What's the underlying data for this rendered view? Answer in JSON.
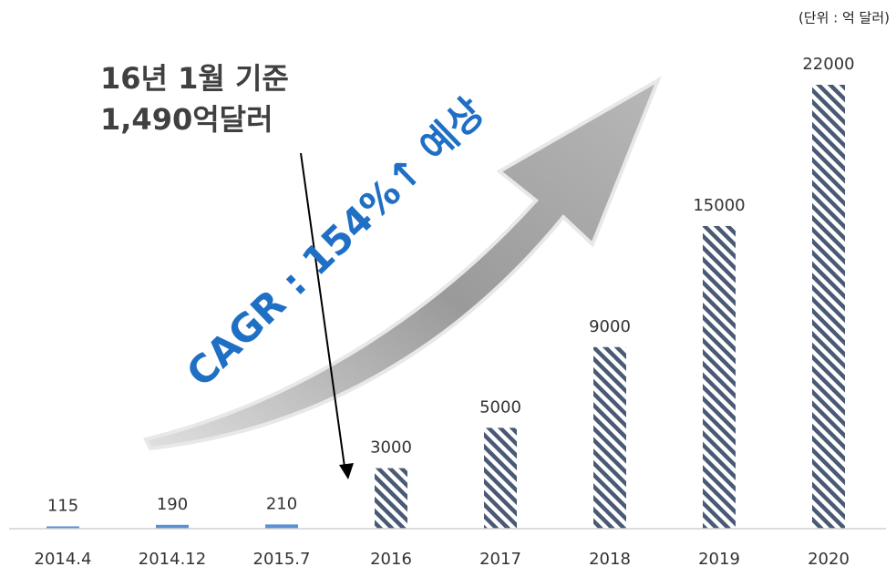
{
  "chart_data": {
    "type": "bar",
    "unit_note": "(단위 : 억 달러)",
    "annotations": [
      "16년 1월 기준",
      "1,490억달러",
      "CAGR : 154%↑ 예상"
    ],
    "categories": [
      "2014.4",
      "2014.12",
      "2015.7",
      "2016",
      "2017",
      "2018",
      "2019",
      "2020"
    ],
    "values": [
      115,
      190,
      210,
      3000,
      5000,
      9000,
      15000,
      22000
    ],
    "hatched": [
      false,
      false,
      false,
      true,
      true,
      true,
      true,
      true
    ],
    "color": "#5b8fd6",
    "hatch_color": "#4a5a75",
    "ylim": [
      0,
      22000
    ],
    "grid": false
  }
}
